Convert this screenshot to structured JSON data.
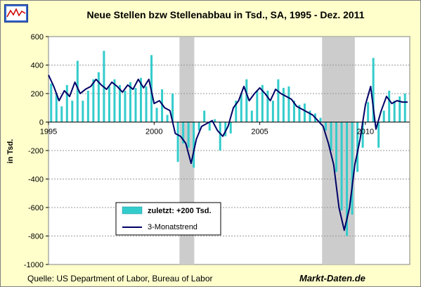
{
  "chart_data": {
    "type": "bar",
    "title": "Neue Stellen bzw Stellenabbau in Tsd., SA, 1995 - Dez. 2011",
    "ylabel": "in Tsd.",
    "ylim": [
      -1000,
      600
    ],
    "yticks": [
      "600",
      "400",
      "200",
      "0",
      "-200",
      "-400",
      "-600",
      "-800",
      "-1000"
    ],
    "xticks": [
      {
        "label": "1995",
        "x": 1995
      },
      {
        "label": "2000",
        "x": 2000
      },
      {
        "label": "2005",
        "x": 2005
      },
      {
        "label": "2010",
        "x": 2010
      }
    ],
    "xlim": [
      1995,
      2012.1
    ],
    "grid": true,
    "legend_position": "bottom-left",
    "recessions": [
      [
        2001.2,
        2001.9
      ],
      [
        2007.95,
        2009.5
      ]
    ],
    "series": [
      {
        "name": "zuletzt: +200 Tsd.",
        "type": "bar",
        "color": "#33cccc",
        "x": [
          1995.0,
          1995.25,
          1995.5,
          1995.75,
          1996.0,
          1996.25,
          1996.5,
          1996.75,
          1997.0,
          1997.25,
          1997.5,
          1997.75,
          1998.0,
          1998.25,
          1998.5,
          1998.75,
          1999.0,
          1999.25,
          1999.5,
          1999.75,
          2000.0,
          2000.25,
          2000.5,
          2000.75,
          2001.0,
          2001.25,
          2001.5,
          2001.75,
          2002.0,
          2002.25,
          2002.5,
          2002.75,
          2003.0,
          2003.25,
          2003.5,
          2003.75,
          2004.0,
          2004.25,
          2004.5,
          2004.75,
          2005.0,
          2005.25,
          2005.5,
          2005.75,
          2006.0,
          2006.25,
          2006.5,
          2006.75,
          2007.0,
          2007.25,
          2007.5,
          2007.75,
          2008.0,
          2008.25,
          2008.5,
          2008.75,
          2009.0,
          2009.25,
          2009.5,
          2009.75,
          2010.0,
          2010.25,
          2010.5,
          2010.75,
          2011.0,
          2011.25,
          2011.5,
          2011.75
        ],
        "values": [
          270,
          200,
          110,
          260,
          150,
          430,
          150,
          220,
          300,
          350,
          500,
          250,
          300,
          260,
          220,
          280,
          240,
          310,
          250,
          470,
          100,
          230,
          50,
          200,
          -280,
          -150,
          -180,
          -320,
          -60,
          80,
          -60,
          20,
          -200,
          -100,
          -80,
          150,
          200,
          300,
          80,
          220,
          260,
          220,
          150,
          300,
          240,
          250,
          150,
          120,
          130,
          80,
          60,
          30,
          -60,
          -200,
          -350,
          -620,
          -800,
          -650,
          -350,
          -180,
          140,
          450,
          -180,
          80,
          220,
          150,
          180,
          200
        ]
      },
      {
        "name": "3-Monatstrend",
        "type": "line",
        "color": "#000066",
        "x": [
          1995.0,
          1995.25,
          1995.5,
          1995.75,
          1996.0,
          1996.25,
          1996.5,
          1996.75,
          1997.0,
          1997.25,
          1997.5,
          1997.75,
          1998.0,
          1998.25,
          1998.5,
          1998.75,
          1999.0,
          1999.25,
          1999.5,
          1999.75,
          2000.0,
          2000.25,
          2000.5,
          2000.75,
          2001.0,
          2001.25,
          2001.5,
          2001.75,
          2002.0,
          2002.25,
          2002.5,
          2002.75,
          2003.0,
          2003.25,
          2003.5,
          2003.75,
          2004.0,
          2004.25,
          2004.5,
          2004.75,
          2005.0,
          2005.25,
          2005.5,
          2005.75,
          2006.0,
          2006.25,
          2006.5,
          2006.75,
          2007.0,
          2007.25,
          2007.5,
          2007.75,
          2008.0,
          2008.25,
          2008.5,
          2008.75,
          2009.0,
          2009.25,
          2009.5,
          2009.75,
          2010.0,
          2010.25,
          2010.5,
          2010.75,
          2011.0,
          2011.25,
          2011.5,
          2011.75,
          2012.0
        ],
        "values": [
          330,
          250,
          150,
          220,
          180,
          280,
          200,
          230,
          250,
          300,
          260,
          230,
          280,
          250,
          210,
          260,
          230,
          300,
          240,
          300,
          130,
          150,
          100,
          80,
          -80,
          -100,
          -150,
          -290,
          -120,
          -30,
          -10,
          10,
          -60,
          -100,
          -30,
          100,
          150,
          250,
          150,
          200,
          240,
          200,
          150,
          230,
          200,
          180,
          160,
          110,
          90,
          70,
          50,
          10,
          -30,
          -150,
          -300,
          -600,
          -760,
          -600,
          -300,
          -120,
          120,
          250,
          -50,
          80,
          180,
          130,
          150,
          140,
          140
        ]
      }
    ]
  },
  "footer": {
    "source": "Quelle: US Department of Labor, Bureau of Labor",
    "brand": "Markt-Daten.de"
  }
}
